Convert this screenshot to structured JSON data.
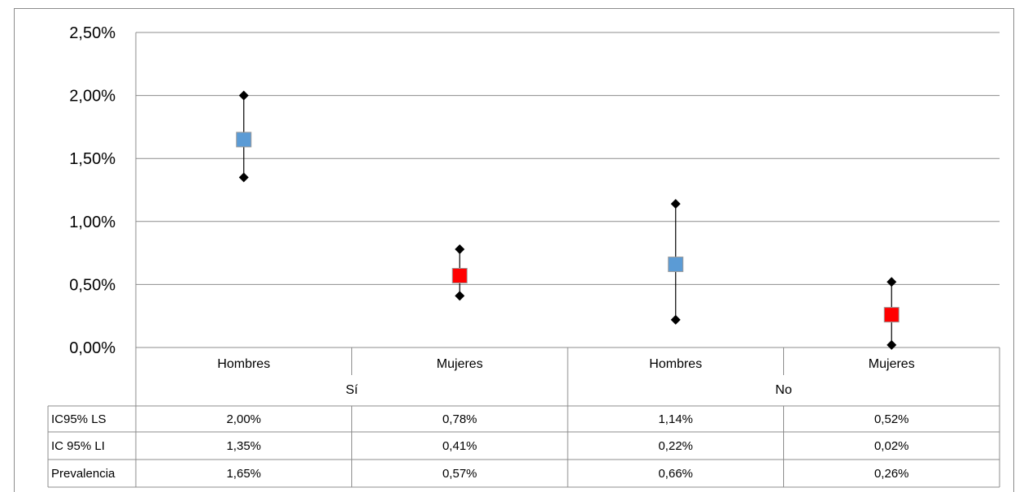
{
  "chart_data": {
    "type": "scatter",
    "title": "",
    "xlabel": "",
    "ylabel": "",
    "ylim": [
      0,
      2.5
    ],
    "y_ticks": [
      "0,00%",
      "0,50%",
      "1,00%",
      "1,50%",
      "2,00%",
      "2,50%"
    ],
    "groups": [
      {
        "label": "Sí",
        "categories": [
          "Hombres",
          "Mujeres"
        ]
      },
      {
        "label": "No",
        "categories": [
          "Hombres",
          "Mujeres"
        ]
      }
    ],
    "categories": [
      "Hombres",
      "Mujeres",
      "Hombres",
      "Mujeres"
    ],
    "series": [
      {
        "name": "IC95% LS",
        "values": [
          2.0,
          0.78,
          1.14,
          0.52
        ],
        "labels": [
          "2,00%",
          "0,78%",
          "1,14%",
          "0,52%"
        ]
      },
      {
        "name": "IC 95% LI",
        "values": [
          1.35,
          0.41,
          0.22,
          0.02
        ],
        "labels": [
          "1,35%",
          "0,41%",
          "0,22%",
          "0,02%"
        ]
      },
      {
        "name": "Prevalencia",
        "values": [
          1.65,
          0.57,
          0.66,
          0.26
        ],
        "labels": [
          "1,65%",
          "0,57%",
          "0,66%",
          "0,26%"
        ]
      }
    ],
    "marker_colors": [
      "#5b9bd5",
      "#ff0000",
      "#5b9bd5",
      "#ff0000"
    ],
    "ci_marker_color": "#000000",
    "gridlines": true
  }
}
